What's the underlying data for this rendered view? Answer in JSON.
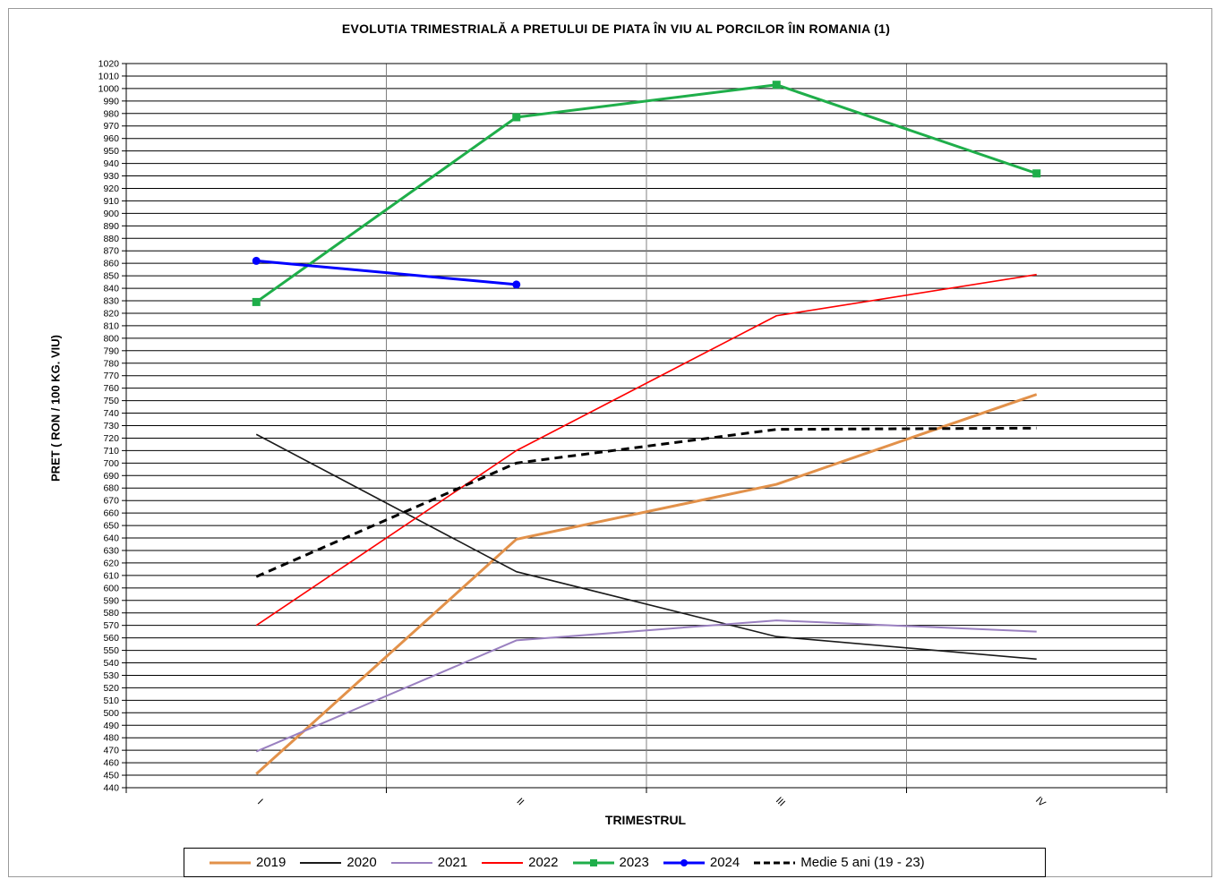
{
  "chart_data": {
    "type": "line",
    "title": "EVOLUTIA  TRIMESTRIALĂ  A PRETULUI  DE PIATA ÎN VIU AL PORCILOR ÎIN ROMANIA (1)",
    "xlabel": "TRIMESTRUL",
    "ylabel": "PRET  ( RON  / 100 KG. VIU)",
    "categories": [
      "I",
      "II",
      "III",
      "IV"
    ],
    "ylim": [
      440,
      1020
    ],
    "ytick_step": 10,
    "grid": true,
    "legend_position": "bottom",
    "series": [
      {
        "name": "2019",
        "values": [
          451,
          639,
          683,
          755
        ],
        "color": "#e2914a",
        "marker": "none",
        "dash": "solid",
        "width": 3
      },
      {
        "name": "2020",
        "values": [
          723,
          613,
          561,
          543
        ],
        "color": "#1a1a1a",
        "marker": "none",
        "dash": "solid",
        "width": 1.6
      },
      {
        "name": "2021",
        "values": [
          469,
          558,
          574,
          565
        ],
        "color": "#9a80c0",
        "marker": "none",
        "dash": "solid",
        "width": 2
      },
      {
        "name": "2022",
        "values": [
          570,
          710,
          818,
          851
        ],
        "color": "#ff0000",
        "marker": "none",
        "dash": "solid",
        "width": 1.6
      },
      {
        "name": "2023",
        "values": [
          829,
          977,
          1003,
          932
        ],
        "color": "#1fae4a",
        "marker": "square",
        "dash": "solid",
        "width": 3
      },
      {
        "name": "2024",
        "values": [
          862,
          843,
          null,
          null
        ],
        "color": "#0000ff",
        "marker": "circle",
        "dash": "solid",
        "width": 3
      },
      {
        "name": "Medie 5 ani (19 - 23)",
        "values": [
          609,
          700,
          727,
          728
        ],
        "color": "#000000",
        "marker": "none",
        "dash": "dashed",
        "width": 3
      }
    ]
  }
}
